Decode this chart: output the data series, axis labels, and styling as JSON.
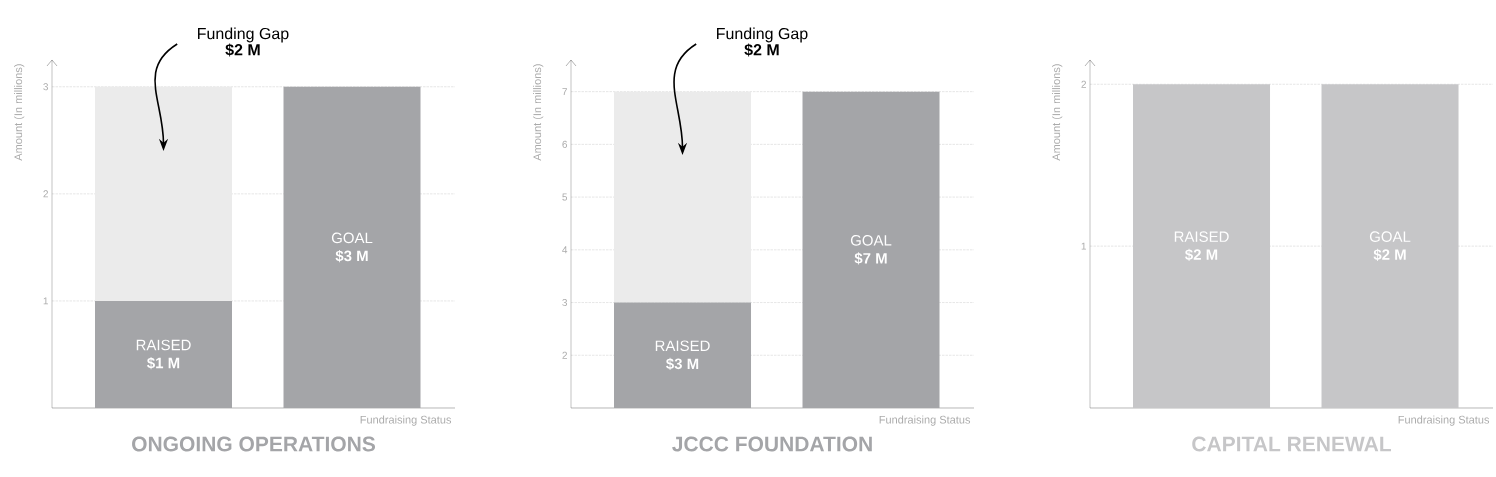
{
  "chart_data": [
    {
      "type": "bar",
      "title": "ONGOING OPERATIONS",
      "xlabel": "Fundraising Status",
      "ylabel": "Amount (In millions)",
      "categories": [
        "RAISED",
        "GOAL"
      ],
      "stacked": true,
      "ylim": [
        0,
        3.25
      ],
      "yticks": [
        1,
        2,
        3
      ],
      "grid": "y",
      "annotations": [
        "Funding Gap",
        "$2 M"
      ],
      "series": [
        {
          "color": "#a4a5a8",
          "values": [
            1,
            3
          ],
          "value_labels": [
            "$1 M",
            "$3 M"
          ]
        },
        {
          "color": "#ebebeb",
          "values": [
            2,
            null
          ]
        }
      ]
    },
    {
      "type": "bar",
      "title": "JCCC FOUNDATION",
      "xlabel": "Fundraising Status",
      "ylabel": "Amount (In millions)",
      "categories": [
        "RAISED",
        "GOAL"
      ],
      "stacked": true,
      "ylim": [
        1,
        7.6
      ],
      "yticks": [
        2,
        3,
        4,
        5,
        6,
        7
      ],
      "grid": "y",
      "annotations": [
        "Funding Gap",
        "$2 M"
      ],
      "series": [
        {
          "color": "#a4a5a8",
          "values": [
            3,
            7
          ],
          "value_labels": [
            "$3 M",
            "$7 M"
          ]
        },
        {
          "color": "#ebebeb",
          "values": [
            4,
            null
          ]
        }
      ]
    },
    {
      "type": "bar",
      "title": "CAPITAL RENEWAL",
      "xlabel": "Fundraising Status",
      "ylabel": "Amount (In millions)",
      "categories": [
        "RAISED",
        "GOAL"
      ],
      "ylim": [
        0,
        2.15
      ],
      "yticks": [
        1,
        2
      ],
      "grid": "y",
      "series": [
        {
          "color": "#c6c6c8",
          "values": [
            2,
            2
          ],
          "value_labels": [
            "$2 M",
            "$2 M"
          ]
        }
      ]
    }
  ]
}
